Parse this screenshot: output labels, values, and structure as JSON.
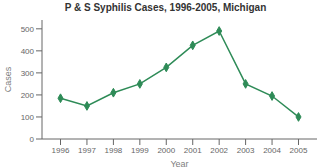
{
  "chart_data": {
    "type": "line",
    "title": "P & S Syphilis Cases, 1996-2005, Michigan",
    "xlabel": "Year",
    "ylabel": "Cases",
    "x": [
      1996,
      1997,
      1998,
      1999,
      2000,
      2001,
      2002,
      2003,
      2004,
      2005
    ],
    "values": [
      185,
      150,
      210,
      250,
      325,
      425,
      490,
      250,
      195,
      100
    ],
    "color": "#2e8b57",
    "marker": "diamond",
    "xlim": [
      1995.3,
      2005.7
    ],
    "xticks": [
      1996,
      1997,
      1998,
      1999,
      2000,
      2001,
      2002,
      2003,
      2004,
      2005
    ],
    "ylim": [
      0,
      540
    ],
    "yticks": [
      0,
      100,
      200,
      300,
      400,
      500
    ],
    "grid": false
  }
}
